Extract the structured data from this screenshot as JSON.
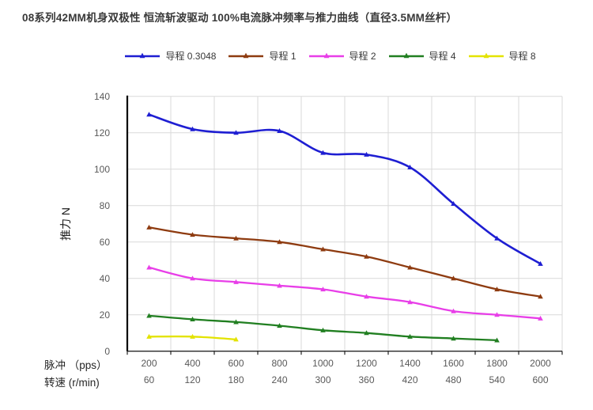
{
  "title": "08系列42MM机身双极性 恒流斩波驱动 100%电流脉冲频率与推力曲线（直径3.5MM丝杆）",
  "colors": {
    "title_text": "#383838",
    "tick_text": "#595959",
    "axis_line": "#262626",
    "y_axis_line": "#000000",
    "gridline": "#d9d9d9",
    "background": "#ffffff"
  },
  "chart_data": {
    "type": "line",
    "title": "08系列42MM机身双极性 恒流斩波驱动 100%电流脉冲频率与推力曲线（直径3.5MM丝杆）",
    "ylabel": "推力 N",
    "ylim": [
      0,
      140
    ],
    "ytick_step": 20,
    "yticks": [
      0,
      20,
      40,
      60,
      80,
      100,
      120,
      140
    ],
    "grid": true,
    "legend_position": "top",
    "line_style": "smooth",
    "marker": "triangle",
    "x_axis_rows": [
      {
        "label": "脉冲 （pps）",
        "values": [
          "200",
          "400",
          "600",
          "800",
          "1000",
          "1200",
          "1400",
          "1600",
          "1800",
          "2000"
        ]
      },
      {
        "label": "转速 (r/min)",
        "values": [
          "60",
          "120",
          "180",
          "240",
          "300",
          "360",
          "420",
          "480",
          "540",
          "600"
        ]
      }
    ],
    "series": [
      {
        "name": "导程 0.3048",
        "color": "#1e1ed2",
        "values": [
          130,
          122,
          120,
          121,
          109,
          108,
          101,
          81,
          62,
          48
        ]
      },
      {
        "name": "导程 1",
        "color": "#8e3b10",
        "values": [
          68,
          64,
          62,
          60,
          56,
          52,
          46,
          40,
          34,
          30
        ]
      },
      {
        "name": "导程 2",
        "color": "#e83ee8",
        "values": [
          46,
          40,
          38,
          36,
          34,
          30,
          27,
          22,
          20,
          18
        ]
      },
      {
        "name": "导程 4",
        "color": "#217f21",
        "values": [
          19.5,
          17.5,
          16,
          14,
          11.5,
          10,
          8,
          7,
          6
        ]
      },
      {
        "name": "导程 8",
        "color": "#e3e300",
        "values": [
          8,
          8,
          6.5
        ]
      }
    ]
  }
}
